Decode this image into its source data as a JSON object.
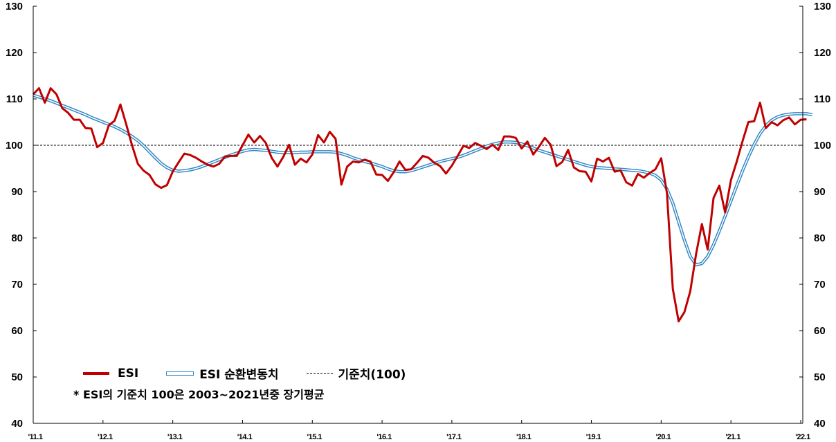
{
  "chart_data": {
    "type": "line",
    "title": "",
    "xlabel": "",
    "ylabel": "",
    "ylim": [
      40,
      130
    ],
    "yticks": [
      40,
      50,
      60,
      70,
      80,
      90,
      100,
      110,
      120,
      130
    ],
    "secondary_yticks": [
      40,
      50,
      60,
      70,
      80,
      90,
      100,
      110,
      120,
      130
    ],
    "x_tick_labels": [
      "'11.1",
      "'12.1",
      "'13.1",
      "'14.1",
      "'15.1",
      "'16.1",
      "'17.1",
      "'18.1",
      "'19.1",
      "'20.1",
      "'21.1",
      "'22.1"
    ],
    "x_start": "2011.1",
    "x_frequency": "monthly",
    "grid": false,
    "legend_position": "bottom-left inside",
    "reference_line": {
      "name": "기준치(100)",
      "value": 100,
      "style": "dashed",
      "color": "#000000"
    },
    "series": [
      {
        "name": "ESI",
        "color": "#c00000",
        "values": [
          111.0,
          112.3,
          109.2,
          112.3,
          111.0,
          108.0,
          107.0,
          105.5,
          105.5,
          103.7,
          103.6,
          99.6,
          100.5,
          104.3,
          105.3,
          108.8,
          104.5,
          100.0,
          96.0,
          94.5,
          93.6,
          91.6,
          90.8,
          91.4,
          94.3,
          96.3,
          98.2,
          97.9,
          97.3,
          96.5,
          95.8,
          95.4,
          96.0,
          97.6,
          97.7,
          97.7,
          100.0,
          102.3,
          100.6,
          102.0,
          100.5,
          97.3,
          95.4,
          97.5,
          100.1,
          95.8,
          97.1,
          96.3,
          98.0,
          102.2,
          100.6,
          102.9,
          101.4,
          91.5,
          95.4,
          96.5,
          96.3,
          96.9,
          96.5,
          93.7,
          93.6,
          92.3,
          94.2,
          96.5,
          94.7,
          94.8,
          96.2,
          97.7,
          97.3,
          96.2,
          95.5,
          93.9,
          95.6,
          97.7,
          99.9,
          99.4,
          100.5,
          99.9,
          99.2,
          100.1,
          99.0,
          101.9,
          101.9,
          101.6,
          99.3,
          100.8,
          98.0,
          99.7,
          101.6,
          100.1,
          95.5,
          96.4,
          99.0,
          95.2,
          94.4,
          94.3,
          92.2,
          97.1,
          96.5,
          97.3,
          94.3,
          94.6,
          92.0,
          91.3,
          93.8,
          93.0,
          94.0,
          94.8,
          97.2,
          89.6,
          69.0,
          62.0,
          64.0,
          68.5,
          76.5,
          83.0,
          77.5,
          88.6,
          91.3,
          85.5,
          92.5,
          96.5,
          100.9,
          105.0,
          105.2,
          109.2,
          103.7,
          105.0,
          104.3,
          105.4,
          106.0,
          104.5,
          105.5,
          105.6
        ]
      },
      {
        "name": "ESI 순환변동치",
        "color": "#2e86c1",
        "values": [
          110.8,
          110.4,
          110.0,
          109.6,
          109.1,
          108.6,
          108.1,
          107.6,
          107.1,
          106.6,
          106.0,
          105.5,
          105.0,
          104.5,
          104.0,
          103.4,
          102.7,
          101.9,
          101.0,
          99.9,
          98.6,
          97.3,
          96.1,
          95.2,
          94.6,
          94.4,
          94.5,
          94.7,
          95.0,
          95.4,
          95.9,
          96.4,
          96.9,
          97.4,
          97.9,
          98.3,
          98.7,
          99.0,
          99.1,
          99.0,
          98.9,
          98.7,
          98.5,
          98.4,
          98.4,
          98.4,
          98.5,
          98.5,
          98.6,
          98.6,
          98.6,
          98.6,
          98.5,
          98.2,
          97.8,
          97.3,
          96.9,
          96.5,
          96.2,
          95.8,
          95.4,
          94.9,
          94.5,
          94.3,
          94.3,
          94.5,
          94.9,
          95.3,
          95.7,
          96.1,
          96.5,
          96.8,
          97.1,
          97.4,
          97.8,
          98.3,
          98.8,
          99.3,
          99.8,
          100.2,
          100.5,
          100.7,
          100.7,
          100.6,
          100.3,
          99.9,
          99.4,
          98.9,
          98.5,
          98.1,
          97.7,
          97.3,
          96.9,
          96.5,
          96.1,
          95.7,
          95.4,
          95.2,
          95.1,
          95.0,
          94.9,
          94.8,
          94.7,
          94.6,
          94.5,
          94.3,
          94.0,
          93.5,
          92.5,
          90.5,
          87.5,
          83.5,
          79.5,
          76.0,
          74.2,
          74.5,
          76.0,
          78.5,
          81.5,
          84.7,
          88.0,
          91.3,
          94.5,
          97.5,
          100.2,
          102.5,
          104.2,
          105.4,
          106.1,
          106.5,
          106.7,
          106.8,
          106.8,
          106.8,
          106.6
        ]
      }
    ]
  },
  "legend": {
    "esi_label": "ESI",
    "cyclical_label": "ESI 순환변동치",
    "baseline_label": "기준치(100)"
  },
  "note": "* ESI의 기준치 100은 2003~2021년중 장기평균"
}
